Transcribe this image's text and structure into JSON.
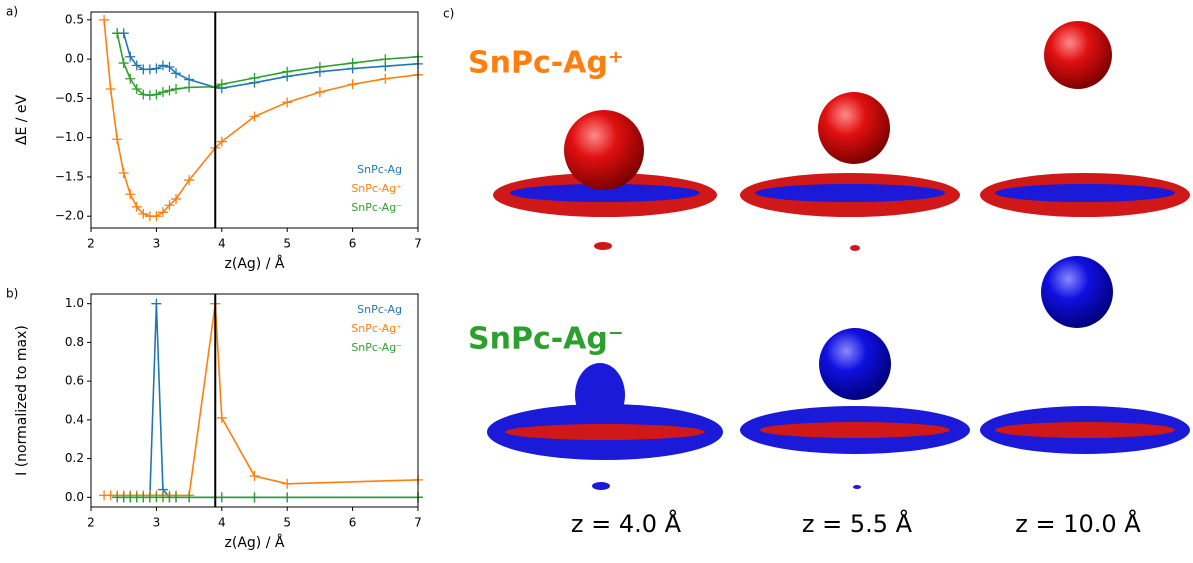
{
  "panels": {
    "a": "a)",
    "b": "b)",
    "c": "c)"
  },
  "chart_data": [
    {
      "type": "line",
      "xlabel": "z(Ag) / Å",
      "ylabel": "ΔE / eV",
      "x": [
        2.2,
        2.3,
        2.4,
        2.5,
        2.6,
        2.7,
        2.8,
        2.9,
        3.0,
        3.1,
        3.2,
        3.3,
        3.5,
        3.9,
        4.0,
        4.5,
        5.0,
        5.5,
        6.0,
        6.5,
        7.0
      ],
      "series": [
        {
          "name": "SnPc-Ag",
          "color": "#1f77b4",
          "values": [
            null,
            null,
            0.33,
            0.33,
            0.03,
            -0.08,
            -0.13,
            -0.13,
            -0.12,
            -0.08,
            -0.1,
            -0.18,
            -0.26,
            -0.36,
            -0.37,
            -0.3,
            -0.22,
            -0.16,
            -0.12,
            -0.09,
            -0.06
          ]
        },
        {
          "name": "SnPc-Ag⁺",
          "color": "#ff7f0e",
          "values": [
            0.5,
            -0.38,
            -1.02,
            -1.45,
            -1.72,
            -1.88,
            -1.97,
            -2.0,
            -2.0,
            -1.95,
            -1.86,
            -1.78,
            -1.54,
            -1.13,
            -1.05,
            -0.73,
            -0.55,
            -0.42,
            -0.32,
            -0.25,
            -0.2
          ]
        },
        {
          "name": "SnPc-Ag⁻",
          "color": "#2ca02c",
          "values": [
            null,
            null,
            0.33,
            -0.05,
            -0.25,
            -0.38,
            -0.45,
            -0.46,
            -0.45,
            -0.42,
            -0.4,
            -0.38,
            -0.36,
            -0.35,
            -0.32,
            -0.24,
            -0.16,
            -0.1,
            -0.05,
            0.0,
            0.03
          ]
        }
      ],
      "xlim": [
        2,
        7
      ],
      "xticks": [
        2,
        3,
        4,
        5,
        6,
        7
      ],
      "ylim": [
        -2.15,
        0.6
      ],
      "yticks": [
        {
          "value": -2.0,
          "label": "−2.0"
        },
        {
          "value": -1.5,
          "label": "−1.5"
        },
        {
          "value": -1.0,
          "label": "−1.0"
        },
        {
          "value": -0.5,
          "label": "−0.5"
        },
        {
          "value": 0,
          "label": "0.0"
        },
        0.5
      ],
      "vline": 3.9,
      "legend": "lower right"
    },
    {
      "type": "line",
      "xlabel": "z(Ag) / Å",
      "ylabel": "I (normalized to max)",
      "x": [
        2.2,
        2.3,
        2.4,
        2.5,
        2.6,
        2.7,
        2.8,
        2.9,
        3.0,
        3.1,
        3.2,
        3.3,
        3.5,
        3.9,
        4.0,
        4.5,
        5.0,
        7.0
      ],
      "series": [
        {
          "name": "SnPc-Ag",
          "color": "#1f77b4",
          "values": [
            null,
            null,
            0,
            0,
            0,
            0,
            0,
            0,
            1.0,
            0.04,
            0,
            0,
            0,
            0,
            0,
            0,
            0,
            0
          ]
        },
        {
          "name": "SnPc-Ag⁺",
          "color": "#ff7f0e",
          "values": [
            0.01,
            0.01,
            0.01,
            0.01,
            0.01,
            0.01,
            0.01,
            0.01,
            0.01,
            0.01,
            0.01,
            0.01,
            0.01,
            1.0,
            0.41,
            0.11,
            0.07,
            0.09
          ]
        },
        {
          "name": "SnPc-Ag⁻",
          "color": "#2ca02c",
          "values": [
            null,
            null,
            0,
            0,
            0,
            0,
            0,
            0,
            0,
            0,
            0,
            0,
            0,
            0,
            0,
            0,
            0,
            0
          ]
        }
      ],
      "xlim": [
        2,
        7
      ],
      "xticks": [
        2,
        3,
        4,
        5,
        6,
        7
      ],
      "ylim": [
        -0.05,
        1.05
      ],
      "yticks": [
        {
          "value": 0,
          "label": "0.0"
        },
        0.2,
        0.4,
        0.6,
        0.8,
        {
          "value": 1,
          "label": "1.0"
        }
      ],
      "vline": 3.9,
      "legend": "upper right"
    }
  ],
  "renders": {
    "row_titles": [
      "SnPc-Ag⁺",
      "SnPc-Ag⁻"
    ],
    "columns": [
      "z = 4.0 Å",
      "z = 5.5 Å",
      "z = 10.0 Å"
    ]
  }
}
